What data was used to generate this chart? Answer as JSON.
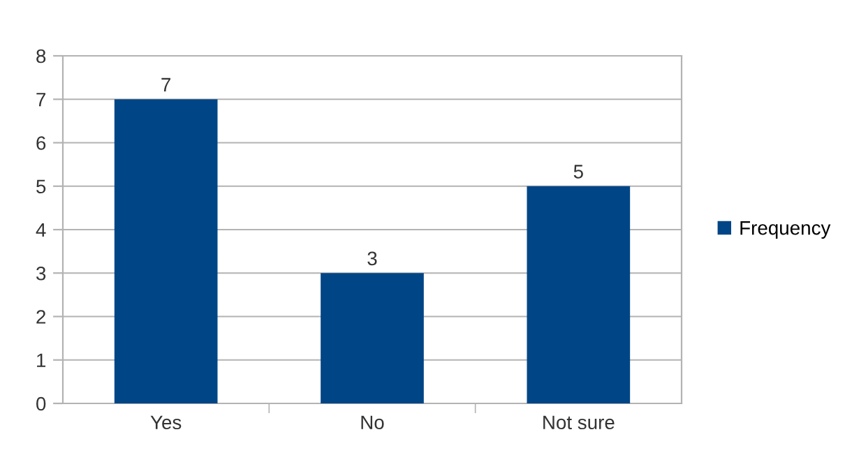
{
  "chart_data": {
    "type": "bar",
    "categories": [
      "Yes",
      "No",
      "Not sure"
    ],
    "series": [
      {
        "name": "Frequency",
        "color": "#004586",
        "values": [
          7,
          3,
          5
        ]
      }
    ],
    "ylim": [
      0,
      8
    ],
    "yticks": [
      0,
      1,
      2,
      3,
      4,
      5,
      6,
      7,
      8
    ],
    "grid": "y",
    "legend": "right",
    "data_labels": true
  }
}
